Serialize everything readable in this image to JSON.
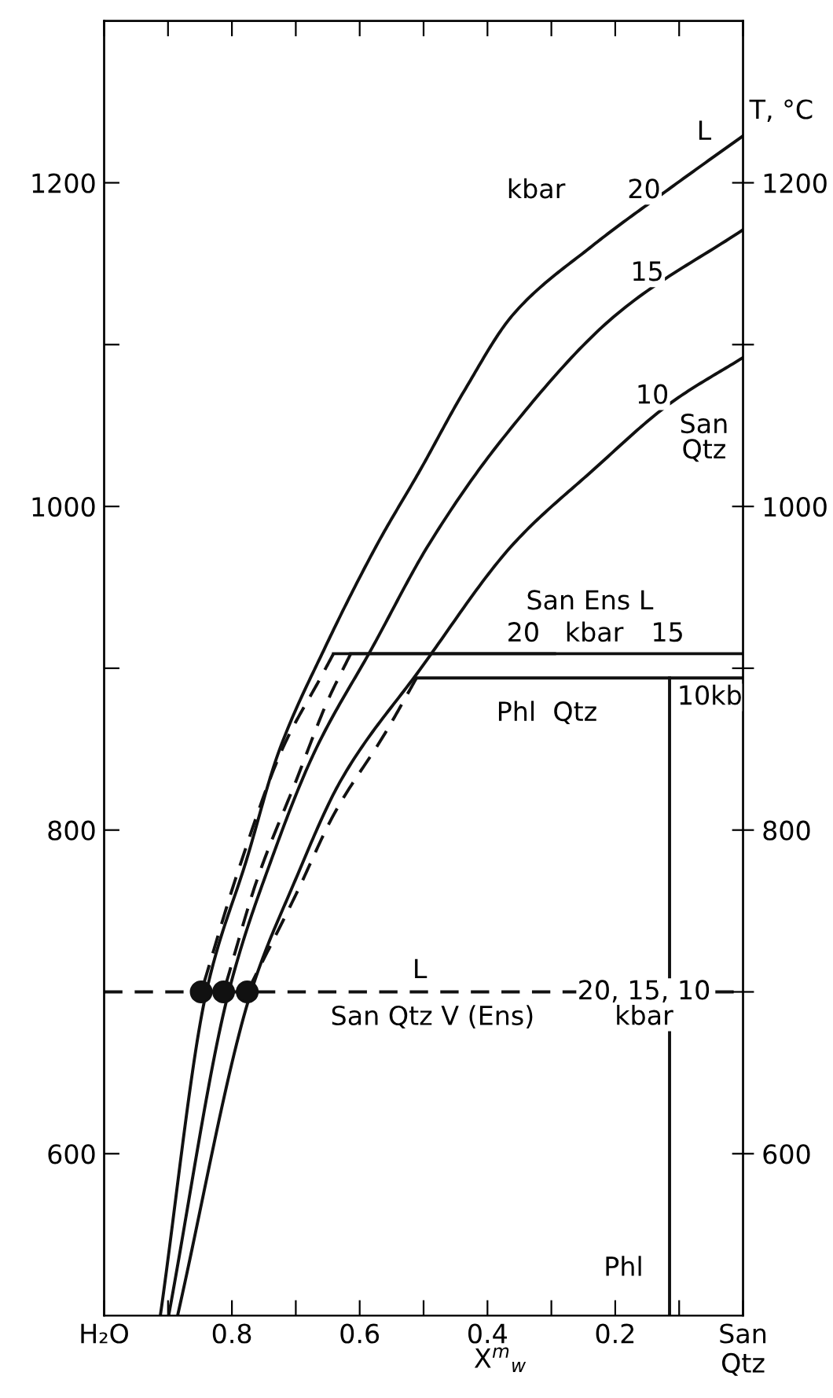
{
  "chart_data": {
    "type": "line",
    "xlim": [
      1,
      0
    ],
    "ylim": [
      500,
      1300
    ],
    "y2lim": [
      500,
      1300
    ],
    "xticks": [
      {
        "value": 1,
        "label": "H₂O"
      },
      {
        "value": 0.9,
        "label": null
      },
      0.8,
      {
        "value": 0.7,
        "label": null
      },
      0.6,
      {
        "value": 0.5,
        "label": null
      },
      0.4,
      {
        "value": 0.3,
        "label": null
      },
      0.2,
      {
        "value": 0.1,
        "label": null
      },
      {
        "value": 0,
        "label": "San\nQtz"
      }
    ],
    "yticks": [
      600,
      {
        "value": 700,
        "label": null
      },
      800,
      {
        "value": 900,
        "label": null
      },
      1000,
      {
        "value": 1100,
        "label": null
      },
      1200
    ],
    "y2ticks": [
      600,
      {
        "value": 700,
        "label": null
      },
      800,
      {
        "value": 900,
        "label": null
      },
      1000,
      {
        "value": 1100,
        "label": null
      },
      1200
    ],
    "xlabel": "X$^{m}$$_{w}$",
    "y2label": "T, °C",
    "series": [
      {
        "color": "#111111",
        "line_style": "solid",
        "x": [
          0.912,
          0.84,
          0.776,
          0.727,
          0.654,
          0.572,
          0.506,
          0.437,
          0.359,
          0.236,
          0.113,
          0
        ],
        "values": [
          500,
          700,
          783,
          848,
          913,
          977,
          1022,
          1071,
          1119,
          1161,
          1197,
          1229
        ]
      },
      {
        "color": "#111111",
        "line_style": "solid",
        "x": [
          0.899,
          0.805,
          0.737,
          0.671,
          0.58,
          0.491,
          0.376,
          0.197,
          0
        ],
        "values": [
          500,
          700,
          783,
          848,
          913,
          977,
          1042,
          1119,
          1171
        ]
      },
      {
        "color": "#111111",
        "line_style": "solid",
        "x": [
          0.885,
          0.77,
          0.703,
          0.629,
          0.506,
          0.359,
          0.236,
          0.113,
          0
        ],
        "values": [
          500,
          700,
          767,
          831,
          899,
          977,
          1022,
          1064,
          1092
        ]
      },
      {
        "color": "#111111",
        "line_style": "dashed",
        "x": [
          0.641,
          0.66,
          0.72,
          0.79,
          0.848
        ],
        "values": [
          909,
          895,
          851,
          775,
          700
        ]
      },
      {
        "color": "#111111",
        "line_style": "dashed",
        "x": [
          0.614,
          0.65,
          0.7,
          0.76,
          0.813
        ],
        "values": [
          909,
          880,
          830,
          770,
          700
        ]
      },
      {
        "color": "#111111",
        "line_style": "dashed",
        "x": [
          0.511,
          0.56,
          0.64,
          0.7,
          0.776
        ],
        "values": [
          894,
          860,
          810,
          760,
          700
        ]
      },
      {
        "color": "#111111",
        "line_style": "solid",
        "x": [
          0.641,
          0.295
        ],
        "values": [
          909,
          909
        ]
      },
      {
        "color": "#111111",
        "line_style": "solid",
        "x": [
          0.614,
          0
        ],
        "values": [
          909,
          909
        ]
      },
      {
        "color": "#111111",
        "line_style": "solid",
        "x": [
          0.511,
          0
        ],
        "values": [
          894,
          894
        ]
      },
      {
        "color": "#111111",
        "line_style": "solid",
        "x": [
          0.115,
          0.115
        ],
        "values": [
          894,
          500
        ]
      },
      {
        "color": "#111111",
        "line_style": "dashed",
        "x": [
          1,
          0
        ],
        "values": [
          700,
          700
        ]
      },
      {
        "type": "scatter",
        "color": "#111111",
        "marker": "circle",
        "x": [
          0.848,
          0.813,
          0.776
        ],
        "values": [
          700,
          700,
          700
        ]
      }
    ],
    "annotations": [
      {
        "text": "L",
        "x": 0.061,
        "y": 1231
      },
      {
        "text": "kbar",
        "x": 0.324,
        "y": 1195
      },
      {
        "text": "20",
        "x": 0.155,
        "y": 1195
      },
      {
        "text": "15",
        "x": 0.15,
        "y": 1144
      },
      {
        "text": "10",
        "x": 0.142,
        "y": 1068
      },
      {
        "text": "San\nQtz",
        "x": 0.061,
        "y": 1042
      },
      "San Ens L",
      {
        "text": "20",
        "x": 0.344,
        "y": 921
      },
      {
        "text": "kbar",
        "x": 0.233,
        "y": 921
      },
      {
        "text": "15",
        "x": 0.118,
        "y": 921
      },
      {
        "text": "10kb",
        "x": 0.052,
        "y": 882
      },
      "Phl  Qtz",
      {
        "text": "L",
        "x": 0.506,
        "y": 713
      },
      "San Qtz V (Ens)",
      "20, 15, 10\nkbar",
      {
        "text": "Phl",
        "x": 0.187,
        "y": 529
      }
    ]
  }
}
